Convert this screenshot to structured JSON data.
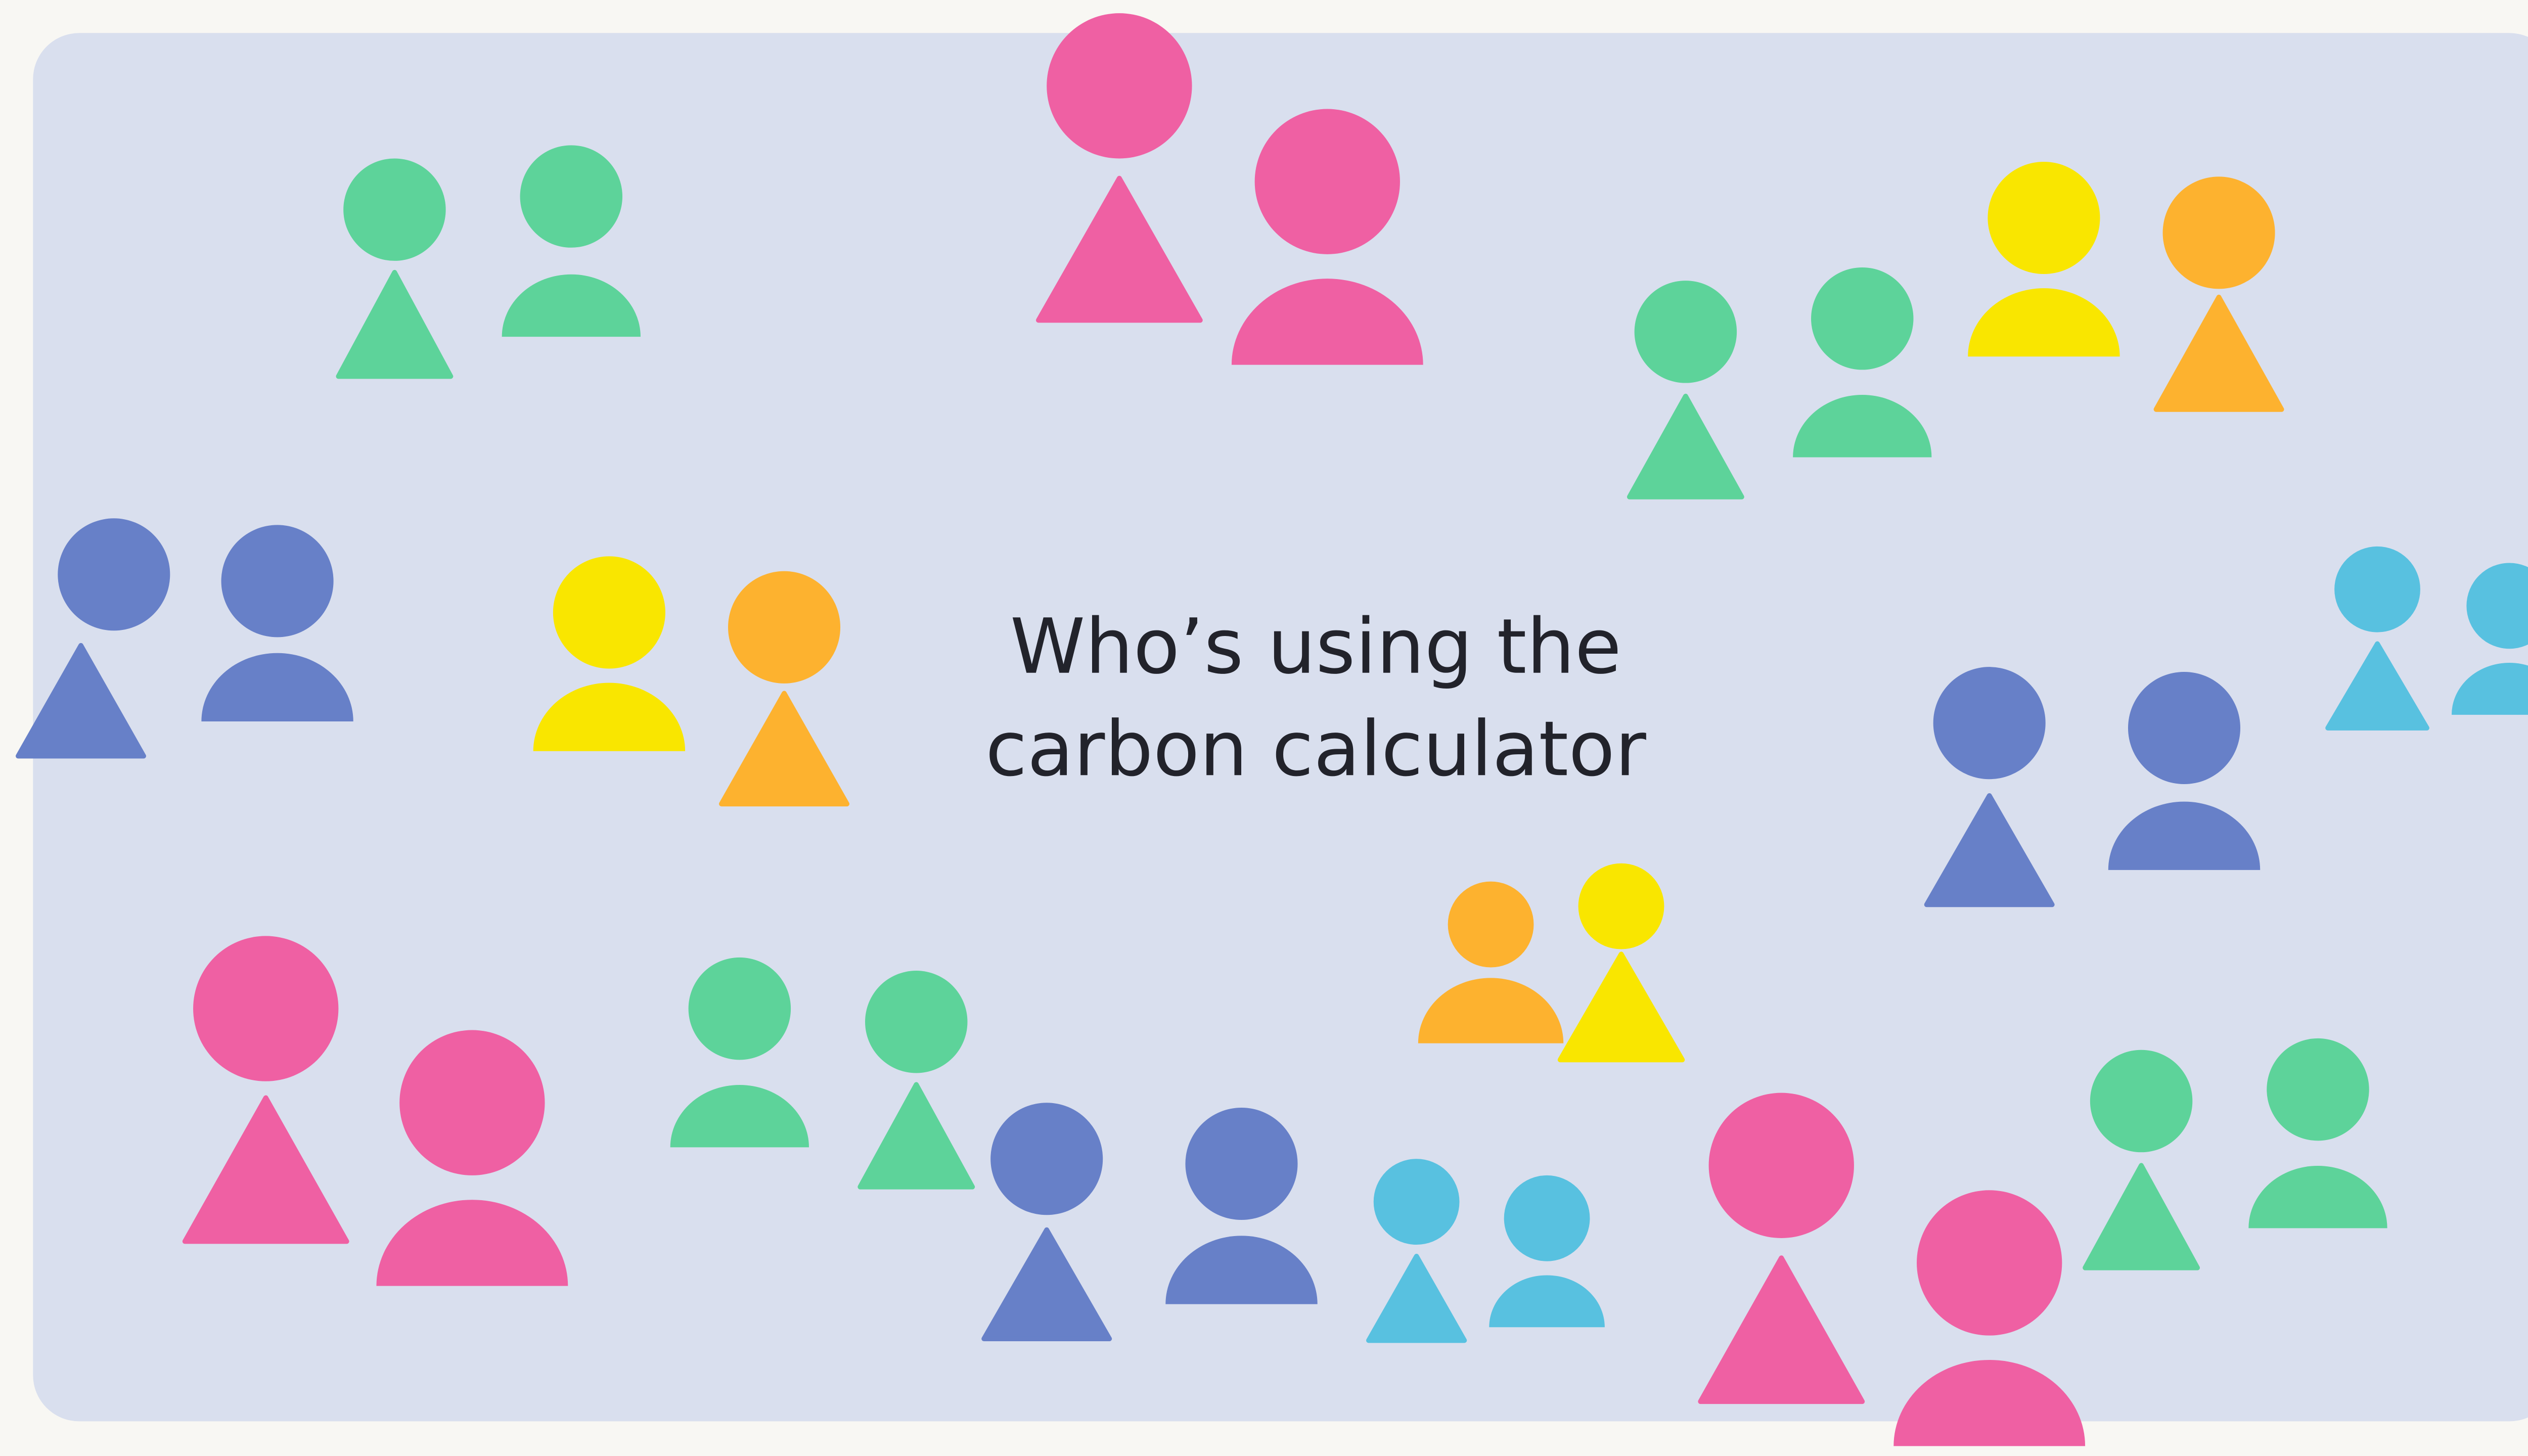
{
  "title": {
    "lines": [
      "Who’s using the",
      "carbon calculator"
    ]
  }
}
